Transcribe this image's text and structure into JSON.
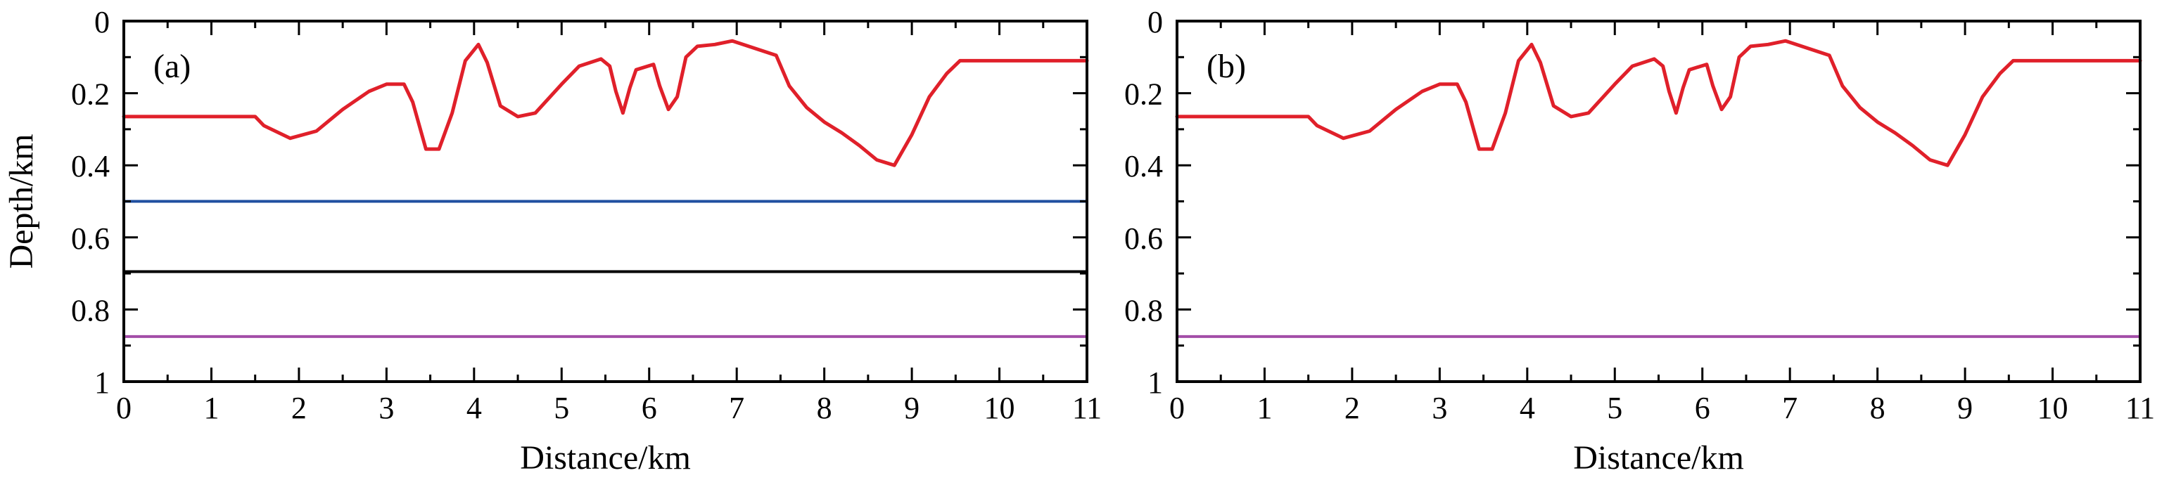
{
  "chart_data": [
    {
      "type": "line",
      "panel_label": "(a)",
      "xlabel": "Distance/km",
      "ylabel": "Depth/km",
      "xlim": [
        0,
        11
      ],
      "ylim": [
        0,
        1
      ],
      "y_reversed": true,
      "x_ticks": [
        "0",
        "1",
        "2",
        "3",
        "4",
        "5",
        "6",
        "7",
        "8",
        "9",
        "10",
        "11"
      ],
      "y_ticks": [
        "0",
        "0.2",
        "0.4",
        "0.6",
        "0.8",
        "1"
      ],
      "grid": false,
      "series": [
        {
          "color": "#e0202a",
          "x": [
            0,
            1.5,
            1.6,
            1.9,
            2.2,
            2.5,
            2.8,
            3.0,
            3.2,
            3.3,
            3.45,
            3.6,
            3.75,
            3.9,
            4.05,
            4.15,
            4.3,
            4.5,
            4.7,
            5.0,
            5.2,
            5.45,
            5.55,
            5.62,
            5.7,
            5.78,
            5.85,
            6.05,
            6.12,
            6.22,
            6.32,
            6.42,
            6.55,
            6.75,
            6.95,
            7.2,
            7.45,
            7.6,
            7.8,
            8.0,
            8.2,
            8.4,
            8.6,
            8.8,
            9.0,
            9.2,
            9.4,
            9.55,
            9.7,
            10.0,
            10.5,
            11.0
          ],
          "y": [
            0.265,
            0.265,
            0.29,
            0.325,
            0.305,
            0.245,
            0.195,
            0.175,
            0.175,
            0.225,
            0.355,
            0.355,
            0.255,
            0.11,
            0.065,
            0.115,
            0.235,
            0.265,
            0.255,
            0.175,
            0.125,
            0.105,
            0.125,
            0.195,
            0.255,
            0.185,
            0.135,
            0.12,
            0.18,
            0.245,
            0.21,
            0.1,
            0.07,
            0.065,
            0.055,
            0.075,
            0.095,
            0.18,
            0.24,
            0.28,
            0.31,
            0.345,
            0.385,
            0.4,
            0.315,
            0.21,
            0.145,
            0.11,
            0.11,
            0.11,
            0.11,
            0.11
          ]
        },
        {
          "color": "#1f4fa0",
          "x": [
            0,
            11
          ],
          "y": [
            0.5,
            0.5
          ]
        },
        {
          "color": "#000000",
          "x": [
            0,
            11
          ],
          "y": [
            0.695,
            0.695
          ]
        },
        {
          "color": "#a24da7",
          "x": [
            0,
            11
          ],
          "y": [
            0.875,
            0.875
          ]
        }
      ]
    },
    {
      "type": "line",
      "panel_label": "(b)",
      "xlabel": "Distance/km",
      "ylabel": "",
      "xlim": [
        0,
        11
      ],
      "ylim": [
        0,
        1
      ],
      "y_reversed": true,
      "x_ticks": [
        "0",
        "1",
        "2",
        "3",
        "4",
        "5",
        "6",
        "7",
        "8",
        "9",
        "10",
        "11"
      ],
      "y_ticks": [
        "0",
        "0.2",
        "0.4",
        "0.6",
        "0.8",
        "1"
      ],
      "grid": false,
      "series": [
        {
          "color": "#e0202a",
          "x": [
            0,
            1.5,
            1.6,
            1.9,
            2.2,
            2.5,
            2.8,
            3.0,
            3.2,
            3.3,
            3.45,
            3.6,
            3.75,
            3.9,
            4.05,
            4.15,
            4.3,
            4.5,
            4.7,
            5.0,
            5.2,
            5.45,
            5.55,
            5.62,
            5.7,
            5.78,
            5.85,
            6.05,
            6.12,
            6.22,
            6.32,
            6.42,
            6.55,
            6.75,
            6.95,
            7.2,
            7.45,
            7.6,
            7.8,
            8.0,
            8.2,
            8.4,
            8.6,
            8.8,
            9.0,
            9.2,
            9.4,
            9.55,
            9.7,
            10.0,
            10.5,
            11.0
          ],
          "y": [
            0.265,
            0.265,
            0.29,
            0.325,
            0.305,
            0.245,
            0.195,
            0.175,
            0.175,
            0.225,
            0.355,
            0.355,
            0.255,
            0.11,
            0.065,
            0.115,
            0.235,
            0.265,
            0.255,
            0.175,
            0.125,
            0.105,
            0.125,
            0.195,
            0.255,
            0.185,
            0.135,
            0.12,
            0.18,
            0.245,
            0.21,
            0.1,
            0.07,
            0.065,
            0.055,
            0.075,
            0.095,
            0.18,
            0.24,
            0.28,
            0.31,
            0.345,
            0.385,
            0.4,
            0.315,
            0.21,
            0.145,
            0.11,
            0.11,
            0.11,
            0.11,
            0.11
          ]
        },
        {
          "color": "#a24da7",
          "x": [
            0,
            11
          ],
          "y": [
            0.875,
            0.875
          ]
        }
      ]
    }
  ]
}
